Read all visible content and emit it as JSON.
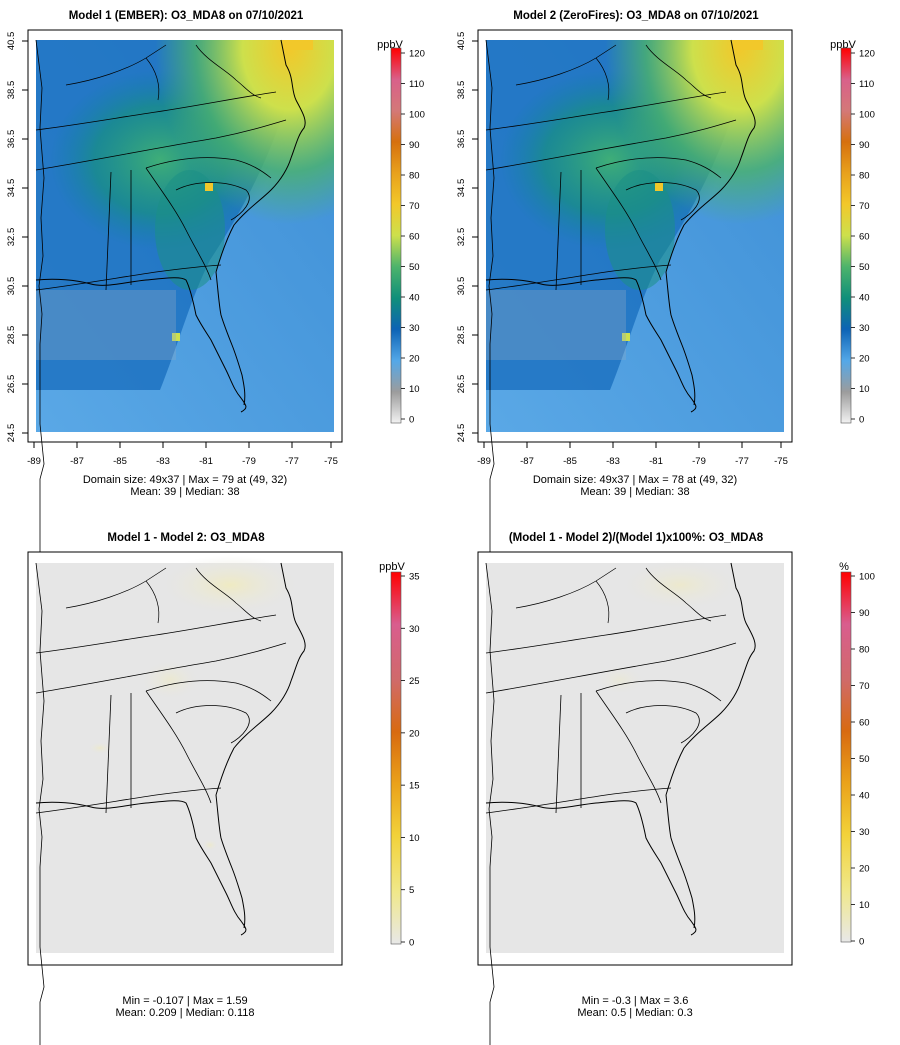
{
  "chart_data": [
    {
      "type": "heatmap",
      "title": "Model 1 (EMBER): O3_MDA8 on 07/10/2021",
      "xticks": [
        "-89",
        "-87",
        "-85",
        "-83",
        "-81",
        "-79",
        "-77",
        "-75"
      ],
      "yticks": [
        "24.5",
        "26.5",
        "28.5",
        "30.5",
        "32.5",
        "34.5",
        "36.5",
        "38.5",
        "40.5"
      ],
      "xlim": [
        -89,
        -75
      ],
      "ylim": [
        24.5,
        40.5
      ],
      "colorbar": {
        "unit": "ppbV",
        "ticks": [
          "0",
          "10",
          "20",
          "30",
          "40",
          "50",
          "60",
          "70",
          "80",
          "90",
          "100",
          "110",
          "120"
        ],
        "range": [
          0,
          120
        ],
        "colors": [
          "#f2f2f2",
          "#9c9c9c",
          "#54a8e8",
          "#0d63b5",
          "#0f8f7a",
          "#4cb36b",
          "#cde04c",
          "#f2c82a",
          "#e8a11c",
          "#d6700e",
          "#d47878",
          "#d9608a",
          "#ff0000"
        ]
      },
      "summary_line1": "Domain size: 49x37 | Max = 79 at (49, 32)",
      "summary_line2": "Mean: 39 |  Median: 38",
      "max": 79,
      "mean": 39,
      "median": 38
    },
    {
      "type": "heatmap",
      "title": "Model 2 (ZeroFires): O3_MDA8 on 07/10/2021",
      "xticks": [
        "-89",
        "-87",
        "-85",
        "-83",
        "-81",
        "-79",
        "-77",
        "-75"
      ],
      "yticks": [
        "24.5",
        "26.5",
        "28.5",
        "30.5",
        "32.5",
        "34.5",
        "36.5",
        "38.5",
        "40.5"
      ],
      "xlim": [
        -89,
        -75
      ],
      "ylim": [
        24.5,
        40.5
      ],
      "colorbar": {
        "unit": "ppbV",
        "ticks": [
          "0",
          "10",
          "20",
          "30",
          "40",
          "50",
          "60",
          "70",
          "80",
          "90",
          "100",
          "110",
          "120"
        ],
        "range": [
          0,
          120
        ],
        "colors": [
          "#f2f2f2",
          "#9c9c9c",
          "#54a8e8",
          "#0d63b5",
          "#0f8f7a",
          "#4cb36b",
          "#cde04c",
          "#f2c82a",
          "#e8a11c",
          "#d6700e",
          "#d47878",
          "#d9608a",
          "#ff0000"
        ]
      },
      "summary_line1": "Domain size: 49x37 | Max = 78 at (49, 32)",
      "summary_line2": "Mean: 39 |  Median: 38",
      "max": 78,
      "mean": 39,
      "median": 38
    },
    {
      "type": "heatmap",
      "title": "Model 1 - Model 2: O3_MDA8",
      "colorbar": {
        "unit": "ppbV",
        "ticks": [
          "0",
          "5",
          "10",
          "15",
          "20",
          "25",
          "30",
          "35"
        ],
        "range": [
          0,
          35
        ],
        "colors": [
          "#e8e8e8",
          "#f0e88a",
          "#f2d23a",
          "#eaa21a",
          "#d86a10",
          "#d06a6a",
          "#d95d8e",
          "#ff0000"
        ]
      },
      "summary_line1": "Min = -0.107 | Max = 1.59",
      "summary_line2": "Mean: 0.209 |  Median: 0.118",
      "min": -0.107,
      "max": 1.59,
      "mean": 0.209,
      "median": 0.118
    },
    {
      "type": "heatmap",
      "title": "(Model 1 - Model 2)/(Model 1)x100%: O3_MDA8",
      "colorbar": {
        "unit": "%",
        "ticks": [
          "0",
          "10",
          "20",
          "30",
          "40",
          "50",
          "60",
          "70",
          "80",
          "90",
          "100"
        ],
        "range": [
          0,
          100
        ],
        "colors": [
          "#e8e8e8",
          "#f0e88a",
          "#f2d23a",
          "#eaa21a",
          "#d86a10",
          "#d06a6a",
          "#d95d8e",
          "#ff0000"
        ]
      },
      "summary_line1": "Min = -0.3 | Max = 3.6",
      "summary_line2": "Mean: 0.5 |  Median: 0.3",
      "min": -0.3,
      "max": 3.6,
      "mean": 0.5,
      "median": 0.3
    }
  ]
}
